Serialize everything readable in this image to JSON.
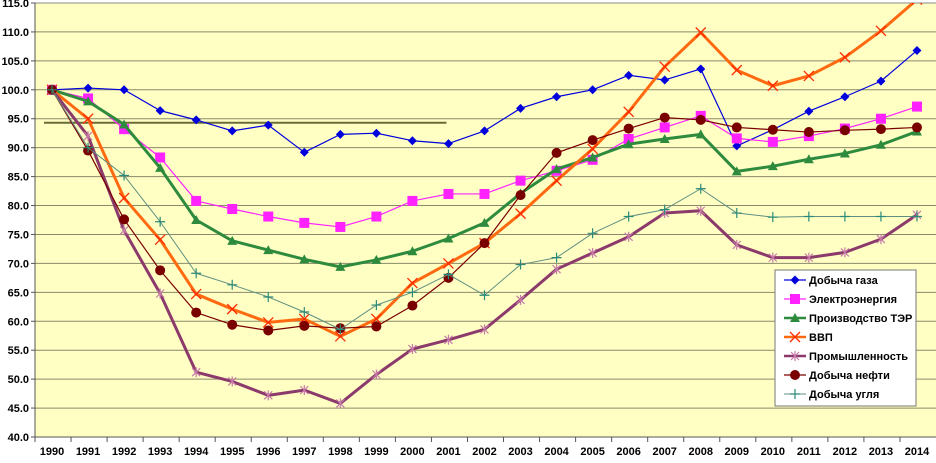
{
  "chart_data": {
    "type": "line",
    "title": "",
    "xlabel": "",
    "ylabel": "",
    "ylim": [
      40,
      115
    ],
    "ytick_step": 5,
    "grid": true,
    "legend_position": "bottom-right",
    "categories": [
      "1990",
      "1991",
      "1992",
      "1993",
      "1994",
      "1995",
      "1996",
      "1997",
      "1998",
      "1999",
      "2000",
      "2001",
      "2002",
      "2003",
      "2004",
      "2005",
      "2006",
      "2007",
      "2008",
      "2009",
      "2010",
      "2011",
      "2012",
      "2013",
      "2014"
    ],
    "yticks": [
      "40.0",
      "45.0",
      "50.0",
      "55.0",
      "60.0",
      "65.0",
      "70.0",
      "75.0",
      "80.0",
      "85.0",
      "90.0",
      "95.0",
      "100.0",
      "105.0",
      "110.0",
      "115.0"
    ],
    "reference_line": {
      "value": 94.3,
      "from": "1990",
      "to": "2001",
      "color": "#6b6b3a"
    },
    "series": [
      {
        "name": "Добыча газа",
        "color": "#0000dd",
        "marker": "diamond",
        "width": 1.2,
        "values": [
          100,
          100.3,
          100,
          96.4,
          94.8,
          92.9,
          93.9,
          89.2,
          92.3,
          92.5,
          91.2,
          90.7,
          92.9,
          96.8,
          98.8,
          100,
          102.5,
          101.7,
          103.6,
          90.3,
          93.1,
          96.3,
          98.8,
          101.5,
          106.8
        ]
      },
      {
        "name": "Электроэнергия",
        "color": "#ff22ff",
        "marker": "square",
        "width": 1.2,
        "values": [
          100,
          98.5,
          93.2,
          88.3,
          80.8,
          79.4,
          78.1,
          77,
          76.3,
          78.1,
          80.8,
          82,
          82,
          84.3,
          86,
          87.9,
          91.5,
          93.5,
          95.5,
          91.6,
          91,
          92,
          93.3,
          95,
          97.1
        ]
      },
      {
        "name": "Производство ТЭР",
        "color": "#2e8b3e",
        "marker": "triangle",
        "width": 3,
        "values": [
          100,
          98,
          94,
          86.5,
          77.5,
          73.9,
          72.3,
          70.7,
          69.4,
          70.6,
          72.1,
          74.3,
          77,
          82.1,
          86.3,
          88.3,
          90.6,
          91.5,
          92.3,
          85.9,
          86.8,
          88,
          89,
          90.5,
          92.8
        ]
      },
      {
        "name": "ВВП",
        "color": "#ff6a10",
        "marker": "x",
        "width": 3,
        "values": [
          100,
          95,
          81.3,
          74.1,
          64.7,
          62.1,
          59.8,
          60.4,
          57.4,
          60.4,
          66.6,
          70,
          73.5,
          78.6,
          84.3,
          89.8,
          96.2,
          104,
          109.9,
          103.4,
          100.7,
          102.4,
          105.6,
          110.2,
          115.6
        ]
      },
      {
        "name": "Промышленность",
        "color": "#8b3a6b",
        "marker": "star",
        "width": 3,
        "values": [
          100,
          92,
          75.7,
          64.8,
          51.2,
          49.6,
          47.2,
          48.1,
          45.8,
          50.8,
          55.2,
          56.8,
          58.6,
          63.7,
          69,
          71.8,
          74.6,
          78.7,
          79.1,
          73.2,
          71,
          71,
          71.9,
          74.2,
          78.4
        ]
      },
      {
        "name": "Добыча нефти",
        "color": "#7a0000",
        "marker": "circle",
        "width": 1.2,
        "values": [
          100,
          89.5,
          77.6,
          68.8,
          61.5,
          59.4,
          58.4,
          59.2,
          58.8,
          59.1,
          62.7,
          67.5,
          73.5,
          81.8,
          89.1,
          91.3,
          93.3,
          95.2,
          94.8,
          93.5,
          93.1,
          92.7,
          93,
          93.2,
          93.5
        ]
      },
      {
        "name": "Добыча угля",
        "color": "#5f8f80",
        "marker": "plus",
        "width": 1,
        "values": [
          100,
          90,
          85.2,
          77.2,
          68.3,
          66.3,
          64.2,
          61.6,
          58.6,
          62.8,
          65,
          68.1,
          64.5,
          69.8,
          71,
          75.2,
          78.1,
          79.3,
          82.9,
          78.7,
          78,
          78.1,
          78.1,
          78.1,
          78.1
        ]
      }
    ]
  }
}
